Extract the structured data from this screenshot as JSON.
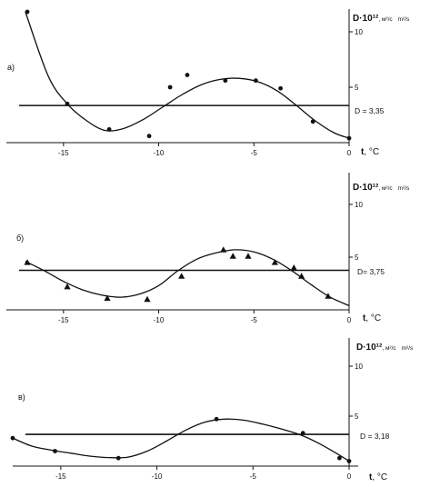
{
  "chart_data": [
    {
      "type": "scatter",
      "panel_label": "а)",
      "ylabel_main": "D·10¹²",
      "ylabel_unit_ru": ", м²/с",
      "ylabel_unit_en": "m²/s",
      "xlabel_main": "t",
      "xlabel_unit": ", °C",
      "x_ticks": [
        "-15",
        "-10",
        "-5",
        "0"
      ],
      "x_tick_values": [
        -15,
        -10,
        -5,
        0
      ],
      "y_ticks": [
        "5",
        "10"
      ],
      "y_tick_values": [
        5,
        10
      ],
      "xlim": [
        -18,
        0
      ],
      "ylim": [
        0,
        12
      ],
      "marker": "circle",
      "points": {
        "x": [
          -16.9,
          -14.8,
          -12.6,
          -10.5,
          -9.4,
          -8.5,
          -6.5,
          -4.9,
          -3.6,
          -1.9,
          0.0
        ],
        "y": [
          11.8,
          3.5,
          1.2,
          0.6,
          5.0,
          6.1,
          5.6,
          5.6,
          4.9,
          1.9,
          0.4
        ]
      },
      "curve": {
        "x": [
          -17.0,
          -15.8,
          -14.8,
          -13.8,
          -12.8,
          -11.8,
          -10.8,
          -9.8,
          -8.8,
          -7.8,
          -6.8,
          -5.8,
          -4.8,
          -3.8,
          -2.8,
          -1.8,
          -0.8,
          0.0
        ],
        "y": [
          11.8,
          6.0,
          3.5,
          2.0,
          1.1,
          1.3,
          2.1,
          3.2,
          4.3,
          5.2,
          5.7,
          5.8,
          5.5,
          4.7,
          3.4,
          2.0,
          0.9,
          0.4
        ]
      },
      "hline": {
        "value": 3.35,
        "label": "D = 3,35"
      }
    },
    {
      "type": "scatter",
      "panel_label": "б)",
      "ylabel_main": "D·10¹²",
      "ylabel_unit_ru": ", м²/с",
      "ylabel_unit_en": "m²/s",
      "xlabel_main": "t",
      "xlabel_unit": ", °C",
      "x_ticks": [
        "-15",
        "-10",
        "-5",
        "0"
      ],
      "x_tick_values": [
        -15,
        -10,
        -5,
        0
      ],
      "y_ticks": [
        "5",
        "10"
      ],
      "y_tick_values": [
        5,
        10
      ],
      "xlim": [
        -18,
        0
      ],
      "ylim": [
        0,
        12
      ],
      "marker": "triangle",
      "points": {
        "x": [
          -16.9,
          -14.8,
          -12.7,
          -10.6,
          -8.8,
          -6.6,
          -6.1,
          -5.3,
          -3.9,
          -2.9,
          -2.5,
          -1.1
        ],
        "y": [
          4.5,
          2.2,
          1.1,
          1.0,
          3.2,
          5.7,
          5.1,
          5.1,
          4.5,
          4.0,
          3.2,
          1.3
        ]
      },
      "curve": {
        "x": [
          -17.0,
          -16.0,
          -15.0,
          -14.0,
          -13.0,
          -12.0,
          -11.0,
          -10.0,
          -9.0,
          -8.0,
          -7.0,
          -6.0,
          -5.0,
          -4.0,
          -3.0,
          -2.0,
          -1.0,
          0.0
        ],
        "y": [
          4.6,
          3.7,
          2.7,
          1.9,
          1.4,
          1.2,
          1.5,
          2.3,
          3.7,
          4.8,
          5.4,
          5.7,
          5.5,
          4.8,
          3.7,
          2.4,
          1.2,
          0.4
        ]
      },
      "hline": {
        "value": 3.75,
        "label": "D= 3,75"
      }
    },
    {
      "type": "scatter",
      "panel_label": "в)",
      "ylabel_main": "D·10¹²",
      "ylabel_unit_ru": ", м²/с",
      "ylabel_unit_en": "m²/s",
      "xlabel_main": "t",
      "xlabel_unit": ", °C",
      "x_ticks": [
        "-15",
        "-10",
        "-5",
        "0"
      ],
      "x_tick_values": [
        -15,
        -10,
        -5,
        0
      ],
      "y_ticks": [
        "5",
        "10"
      ],
      "y_tick_values": [
        5,
        10
      ],
      "xlim": [
        -17.5,
        0.5
      ],
      "ylim": [
        0,
        12
      ],
      "marker": "circle",
      "points": {
        "x": [
          -17.5,
          -15.3,
          -12.0,
          -6.9,
          -2.4,
          -0.5,
          0.0
        ],
        "y": [
          2.8,
          1.5,
          0.8,
          4.7,
          3.3,
          0.8,
          0.5
        ]
      },
      "curve": {
        "x": [
          -17.5,
          -16.5,
          -15.5,
          -14.5,
          -13.5,
          -12.5,
          -11.5,
          -10.5,
          -9.5,
          -8.5,
          -7.5,
          -6.5,
          -5.5,
          -4.5,
          -3.5,
          -2.5,
          -1.5,
          -0.5,
          0.0
        ],
        "y": [
          2.8,
          2.0,
          1.6,
          1.3,
          1.0,
          0.85,
          0.9,
          1.5,
          2.5,
          3.6,
          4.4,
          4.7,
          4.6,
          4.2,
          3.7,
          3.1,
          2.2,
          1.1,
          0.5
        ]
      },
      "hline": {
        "value": 3.18,
        "label": "D = 3,18"
      }
    }
  ]
}
